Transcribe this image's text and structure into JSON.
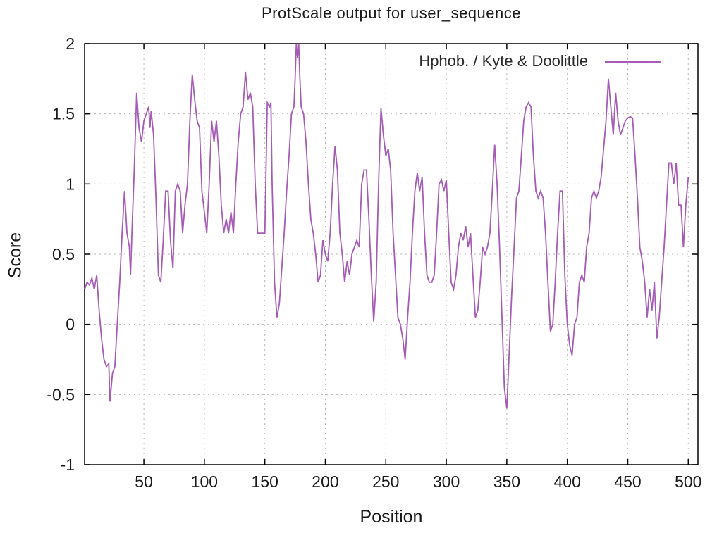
{
  "chart_data": {
    "type": "line",
    "title": "ProtScale output for user_sequence",
    "xlabel": "Position",
    "ylabel": "Score",
    "xlim": [
      1,
      508
    ],
    "ylim": [
      -1,
      2
    ],
    "x_ticks": [
      50,
      100,
      150,
      200,
      250,
      300,
      350,
      400,
      450,
      500
    ],
    "y_ticks": [
      -1,
      -0.5,
      0,
      0.5,
      1,
      1.5,
      2
    ],
    "grid": true,
    "grid_style": "dashed",
    "legend_position": "top-right-inside",
    "series": [
      {
        "name": "Hphob. / Kyte & Doolittle",
        "color": "#a55cb4",
        "points": [
          [
            1,
            0.25
          ],
          [
            3,
            0.3
          ],
          [
            5,
            0.28
          ],
          [
            7,
            0.33
          ],
          [
            9,
            0.25
          ],
          [
            11,
            0.35
          ],
          [
            13,
            0.1
          ],
          [
            15,
            -0.1
          ],
          [
            17,
            -0.25
          ],
          [
            19,
            -0.3
          ],
          [
            21,
            -0.28
          ],
          [
            22,
            -0.55
          ],
          [
            24,
            -0.35
          ],
          [
            26,
            -0.3
          ],
          [
            28,
            0.0
          ],
          [
            30,
            0.3
          ],
          [
            32,
            0.65
          ],
          [
            34,
            0.95
          ],
          [
            36,
            0.65
          ],
          [
            38,
            0.55
          ],
          [
            39,
            0.35
          ],
          [
            40,
            0.62
          ],
          [
            42,
            1.1
          ],
          [
            44,
            1.65
          ],
          [
            46,
            1.4
          ],
          [
            48,
            1.3
          ],
          [
            50,
            1.45
          ],
          [
            52,
            1.5
          ],
          [
            54,
            1.55
          ],
          [
            55,
            1.4
          ],
          [
            56,
            1.52
          ],
          [
            58,
            1.35
          ],
          [
            60,
            0.9
          ],
          [
            62,
            0.35
          ],
          [
            64,
            0.3
          ],
          [
            66,
            0.6
          ],
          [
            68,
            0.95
          ],
          [
            70,
            0.95
          ],
          [
            72,
            0.6
          ],
          [
            74,
            0.4
          ],
          [
            76,
            0.95
          ],
          [
            78,
            1.0
          ],
          [
            80,
            0.95
          ],
          [
            82,
            0.65
          ],
          [
            84,
            0.85
          ],
          [
            86,
            1.0
          ],
          [
            88,
            1.45
          ],
          [
            90,
            1.78
          ],
          [
            92,
            1.6
          ],
          [
            94,
            1.45
          ],
          [
            96,
            1.4
          ],
          [
            98,
            0.95
          ],
          [
            100,
            0.8
          ],
          [
            102,
            0.65
          ],
          [
            104,
            1.0
          ],
          [
            106,
            1.45
          ],
          [
            108,
            1.3
          ],
          [
            110,
            1.45
          ],
          [
            112,
            1.2
          ],
          [
            114,
            0.85
          ],
          [
            116,
            0.65
          ],
          [
            118,
            0.75
          ],
          [
            120,
            0.65
          ],
          [
            122,
            0.8
          ],
          [
            124,
            0.65
          ],
          [
            126,
            1.0
          ],
          [
            128,
            1.3
          ],
          [
            130,
            1.5
          ],
          [
            132,
            1.55
          ],
          [
            134,
            1.8
          ],
          [
            136,
            1.6
          ],
          [
            138,
            1.65
          ],
          [
            140,
            1.55
          ],
          [
            142,
            1.0
          ],
          [
            144,
            0.65
          ],
          [
            146,
            0.65
          ],
          [
            148,
            0.65
          ],
          [
            150,
            0.65
          ],
          [
            152,
            1.58
          ],
          [
            154,
            1.55
          ],
          [
            155,
            1.58
          ],
          [
            156,
            1.0
          ],
          [
            158,
            0.3
          ],
          [
            160,
            0.05
          ],
          [
            162,
            0.15
          ],
          [
            164,
            0.4
          ],
          [
            166,
            0.65
          ],
          [
            168,
            0.95
          ],
          [
            170,
            1.2
          ],
          [
            172,
            1.5
          ],
          [
            174,
            1.55
          ],
          [
            175,
            1.75
          ],
          [
            176,
            2.0
          ],
          [
            177,
            1.9
          ],
          [
            178,
            2.0
          ],
          [
            179,
            1.75
          ],
          [
            180,
            1.55
          ],
          [
            182,
            1.5
          ],
          [
            184,
            1.3
          ],
          [
            186,
            1.0
          ],
          [
            188,
            0.75
          ],
          [
            190,
            0.65
          ],
          [
            192,
            0.5
          ],
          [
            194,
            0.3
          ],
          [
            196,
            0.35
          ],
          [
            198,
            0.6
          ],
          [
            200,
            0.5
          ],
          [
            202,
            0.45
          ],
          [
            204,
            0.65
          ],
          [
            206,
            1.0
          ],
          [
            208,
            1.27
          ],
          [
            210,
            1.1
          ],
          [
            212,
            0.65
          ],
          [
            214,
            0.5
          ],
          [
            216,
            0.3
          ],
          [
            218,
            0.45
          ],
          [
            220,
            0.35
          ],
          [
            222,
            0.5
          ],
          [
            224,
            0.55
          ],
          [
            226,
            0.6
          ],
          [
            228,
            0.55
          ],
          [
            230,
            1.0
          ],
          [
            232,
            1.1
          ],
          [
            234,
            1.1
          ],
          [
            236,
            0.75
          ],
          [
            238,
            0.35
          ],
          [
            240,
            0.02
          ],
          [
            242,
            0.3
          ],
          [
            244,
            1.0
          ],
          [
            246,
            1.54
          ],
          [
            248,
            1.35
          ],
          [
            250,
            1.2
          ],
          [
            252,
            1.25
          ],
          [
            254,
            1.1
          ],
          [
            256,
            0.65
          ],
          [
            258,
            0.35
          ],
          [
            260,
            0.05
          ],
          [
            262,
            0.0
          ],
          [
            264,
            -0.1
          ],
          [
            266,
            -0.25
          ],
          [
            268,
            0.05
          ],
          [
            270,
            0.3
          ],
          [
            272,
            0.65
          ],
          [
            274,
            0.95
          ],
          [
            276,
            1.08
          ],
          [
            278,
            0.95
          ],
          [
            280,
            1.05
          ],
          [
            282,
            0.65
          ],
          [
            284,
            0.35
          ],
          [
            286,
            0.3
          ],
          [
            288,
            0.3
          ],
          [
            290,
            0.35
          ],
          [
            292,
            0.65
          ],
          [
            294,
            1.0
          ],
          [
            296,
            1.03
          ],
          [
            298,
            0.95
          ],
          [
            300,
            1.03
          ],
          [
            302,
            0.65
          ],
          [
            304,
            0.3
          ],
          [
            306,
            0.25
          ],
          [
            308,
            0.35
          ],
          [
            310,
            0.55
          ],
          [
            312,
            0.65
          ],
          [
            314,
            0.6
          ],
          [
            316,
            0.7
          ],
          [
            318,
            0.55
          ],
          [
            320,
            0.65
          ],
          [
            322,
            0.35
          ],
          [
            324,
            0.05
          ],
          [
            326,
            0.1
          ],
          [
            328,
            0.3
          ],
          [
            330,
            0.55
          ],
          [
            332,
            0.5
          ],
          [
            334,
            0.55
          ],
          [
            336,
            0.65
          ],
          [
            338,
            0.95
          ],
          [
            340,
            1.28
          ],
          [
            342,
            1.0
          ],
          [
            344,
            0.55
          ],
          [
            346,
            0.05
          ],
          [
            348,
            -0.45
          ],
          [
            350,
            -0.6
          ],
          [
            352,
            -0.2
          ],
          [
            354,
            0.2
          ],
          [
            356,
            0.55
          ],
          [
            358,
            0.9
          ],
          [
            360,
            0.95
          ],
          [
            362,
            1.2
          ],
          [
            364,
            1.45
          ],
          [
            366,
            1.55
          ],
          [
            368,
            1.58
          ],
          [
            370,
            1.55
          ],
          [
            372,
            1.2
          ],
          [
            374,
            0.95
          ],
          [
            376,
            0.9
          ],
          [
            378,
            0.95
          ],
          [
            380,
            0.9
          ],
          [
            382,
            0.65
          ],
          [
            384,
            0.3
          ],
          [
            386,
            -0.05
          ],
          [
            388,
            0.0
          ],
          [
            390,
            0.3
          ],
          [
            392,
            0.65
          ],
          [
            394,
            0.95
          ],
          [
            396,
            0.95
          ],
          [
            398,
            0.35
          ],
          [
            400,
            0.0
          ],
          [
            402,
            -0.15
          ],
          [
            404,
            -0.22
          ],
          [
            406,
            0.0
          ],
          [
            408,
            0.05
          ],
          [
            410,
            0.3
          ],
          [
            412,
            0.35
          ],
          [
            414,
            0.3
          ],
          [
            416,
            0.55
          ],
          [
            418,
            0.65
          ],
          [
            420,
            0.9
          ],
          [
            422,
            0.95
          ],
          [
            424,
            0.9
          ],
          [
            426,
            0.95
          ],
          [
            428,
            1.05
          ],
          [
            430,
            1.25
          ],
          [
            432,
            1.45
          ],
          [
            434,
            1.75
          ],
          [
            436,
            1.55
          ],
          [
            438,
            1.35
          ],
          [
            440,
            1.65
          ],
          [
            442,
            1.45
          ],
          [
            444,
            1.35
          ],
          [
            446,
            1.4
          ],
          [
            448,
            1.45
          ],
          [
            450,
            1.47
          ],
          [
            452,
            1.48
          ],
          [
            454,
            1.47
          ],
          [
            456,
            1.2
          ],
          [
            458,
            0.9
          ],
          [
            460,
            0.55
          ],
          [
            462,
            0.45
          ],
          [
            464,
            0.3
          ],
          [
            466,
            0.05
          ],
          [
            468,
            0.25
          ],
          [
            470,
            0.1
          ],
          [
            472,
            0.3
          ],
          [
            474,
            -0.1
          ],
          [
            476,
            0.05
          ],
          [
            478,
            0.3
          ],
          [
            480,
            0.55
          ],
          [
            482,
            0.85
          ],
          [
            484,
            1.15
          ],
          [
            486,
            1.15
          ],
          [
            488,
            1.0
          ],
          [
            490,
            1.15
          ],
          [
            492,
            0.85
          ],
          [
            494,
            0.85
          ],
          [
            496,
            0.55
          ],
          [
            498,
            0.85
          ],
          [
            500,
            1.05
          ]
        ]
      }
    ]
  }
}
